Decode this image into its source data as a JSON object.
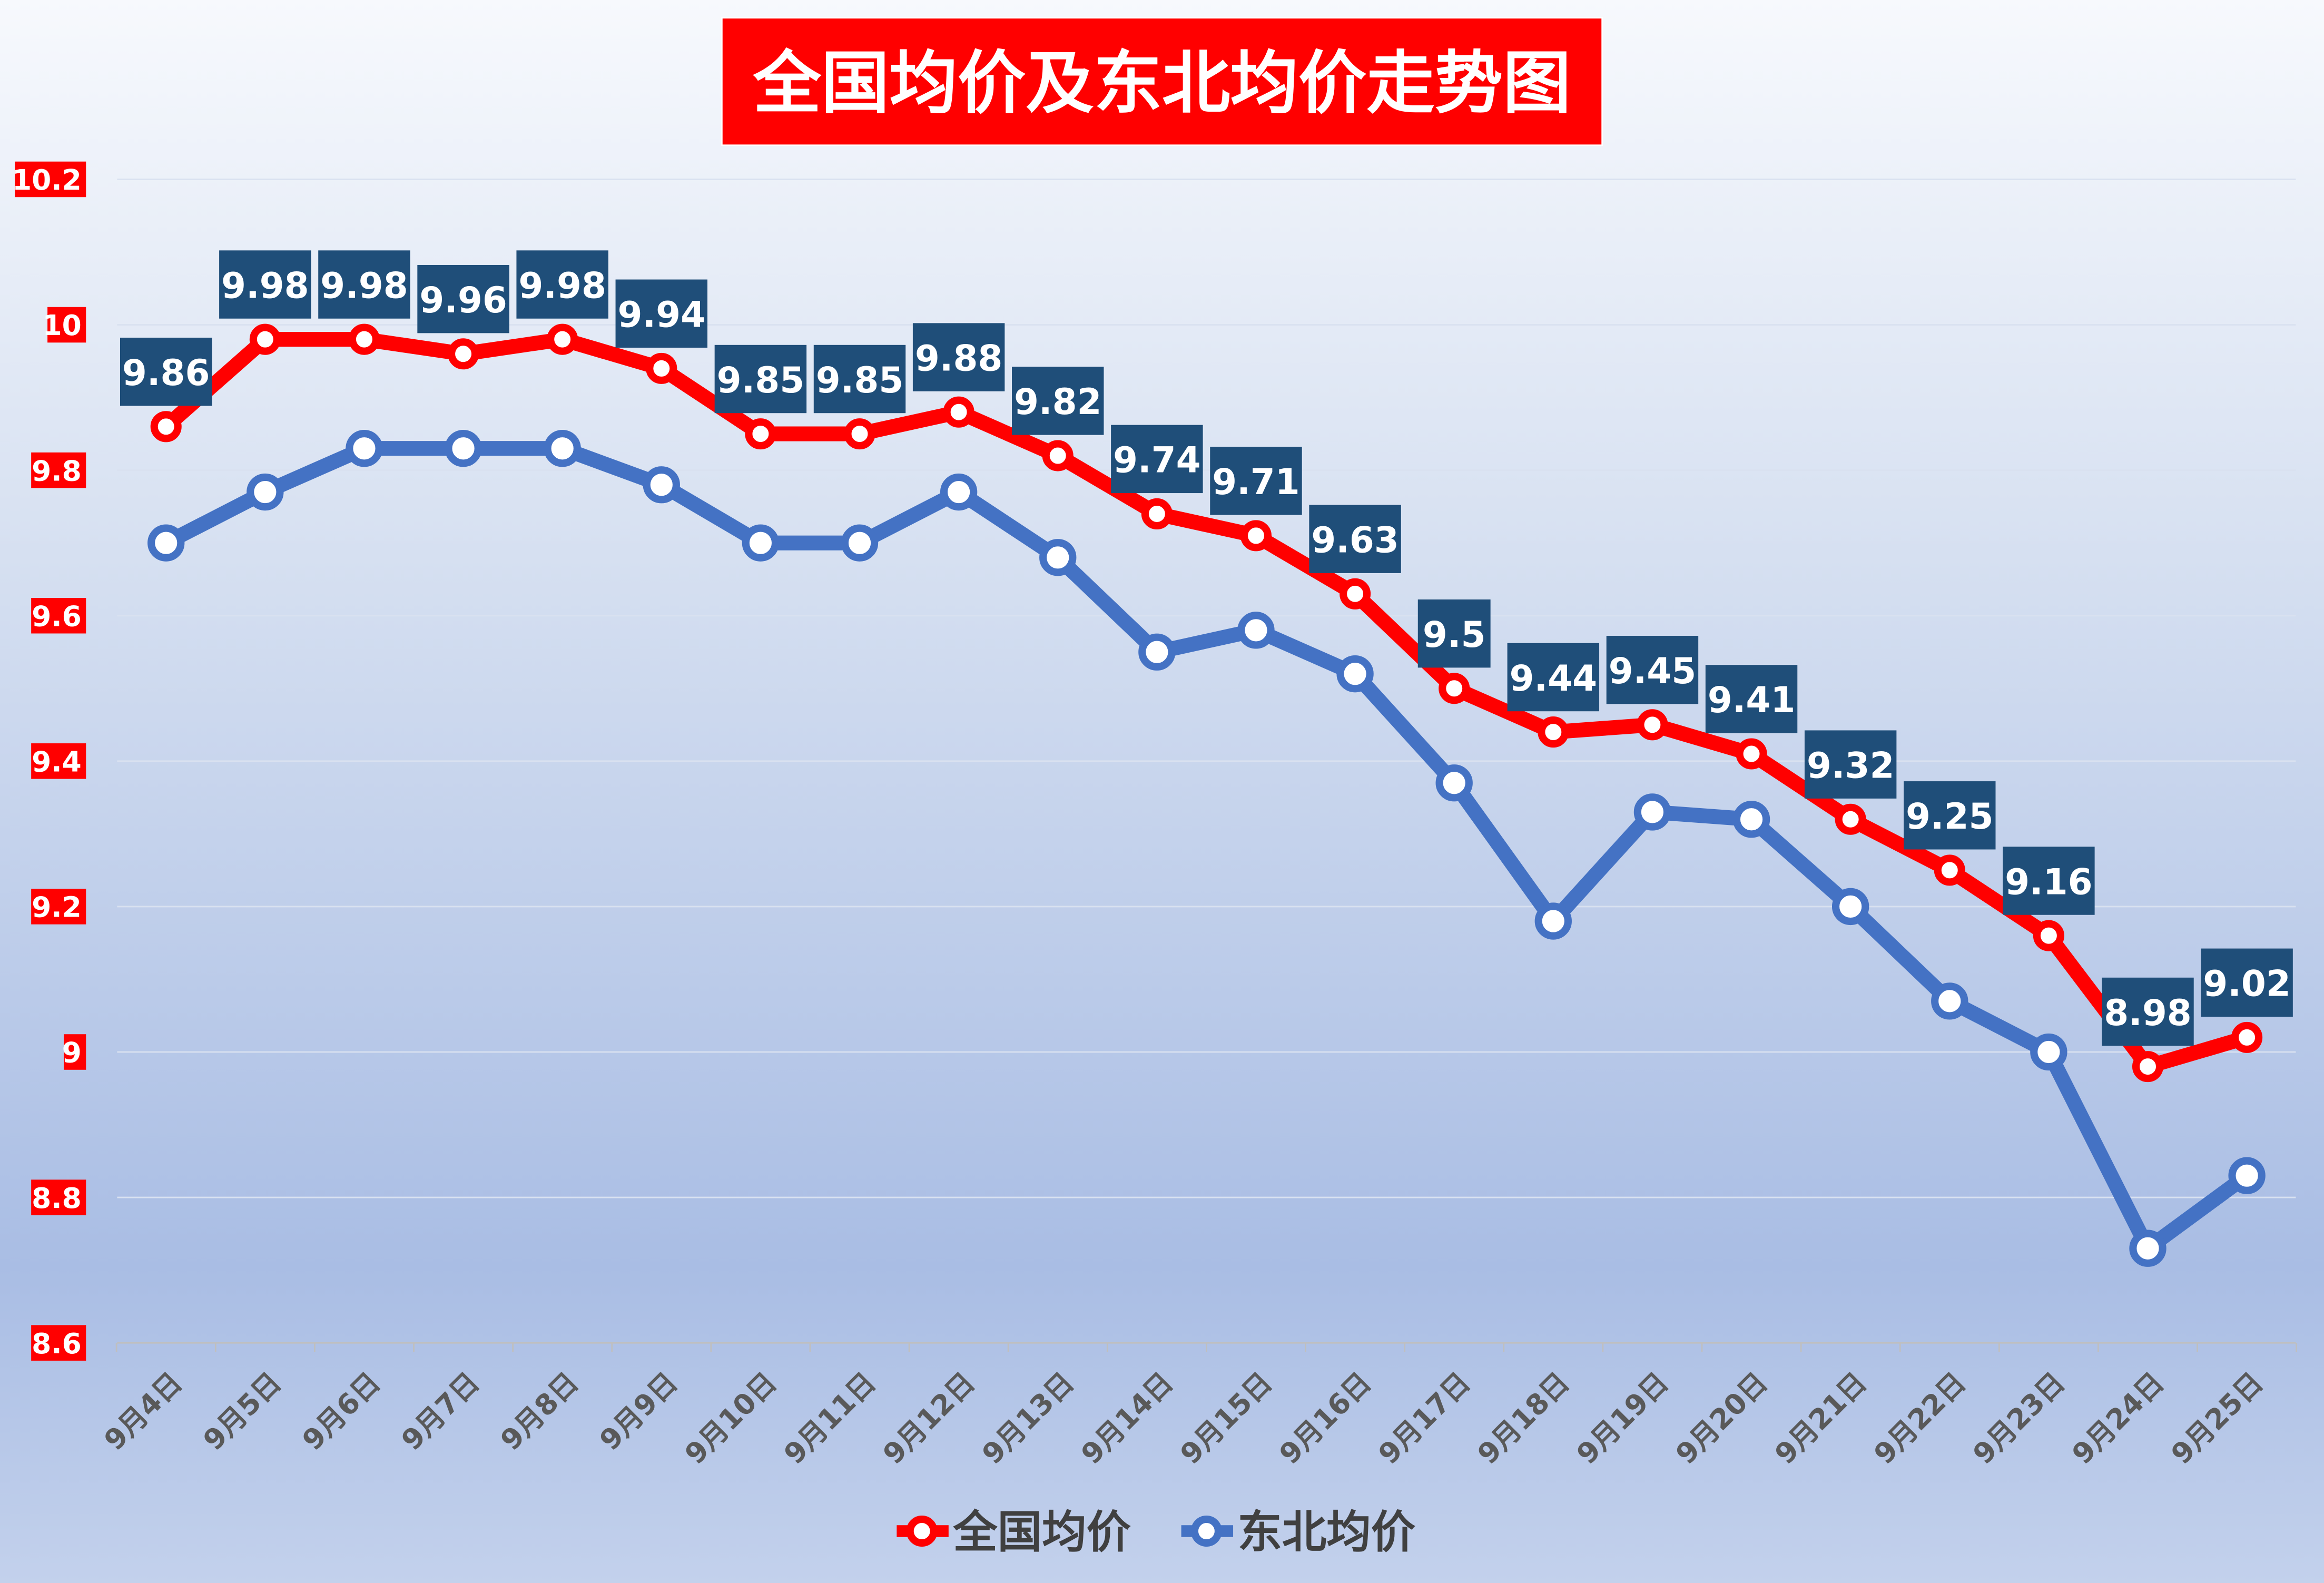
{
  "chart_data": {
    "type": "line",
    "title": "全国均价及东北均价走势图",
    "categories": [
      "9月4日",
      "9月5日",
      "9月6日",
      "9月7日",
      "9月8日",
      "9月9日",
      "9月10日",
      "9月11日",
      "9月12日",
      "9月13日",
      "9月14日",
      "9月15日",
      "9月16日",
      "9月17日",
      "9月18日",
      "9月19日",
      "9月20日",
      "9月21日",
      "9月22日",
      "9月23日",
      "9月24日",
      "9月25日"
    ],
    "series": [
      {
        "name": "全国均价",
        "color": "#FF0000",
        "data_labels": true,
        "values": [
          9.86,
          9.98,
          9.98,
          9.96,
          9.98,
          9.94,
          9.85,
          9.85,
          9.88,
          9.82,
          9.74,
          9.71,
          9.63,
          9.5,
          9.44,
          9.45,
          9.41,
          9.32,
          9.25,
          9.16,
          8.98,
          9.02
        ]
      },
      {
        "name": "东北均价",
        "color": "#4472C4",
        "data_labels": false,
        "values": [
          9.7,
          9.77,
          9.83,
          9.83,
          9.83,
          9.78,
          9.7,
          9.7,
          9.77,
          9.68,
          9.55,
          9.58,
          9.52,
          9.37,
          9.18,
          9.33,
          9.32,
          9.2,
          9.07,
          9.0,
          8.73,
          8.83
        ]
      }
    ],
    "yticks": [
      "8.6",
      "8.8",
      "9",
      "9.2",
      "9.4",
      "9.6",
      "9.8",
      "10",
      "10.2"
    ],
    "ylim": [
      8.6,
      10.2
    ],
    "xlabel": "",
    "ylabel": "",
    "grid": true,
    "legend": "bottom",
    "colors": {
      "title_bg": "#FF0000",
      "label_bg": "#1F4E79",
      "tick_bg": "#FF0000"
    }
  }
}
